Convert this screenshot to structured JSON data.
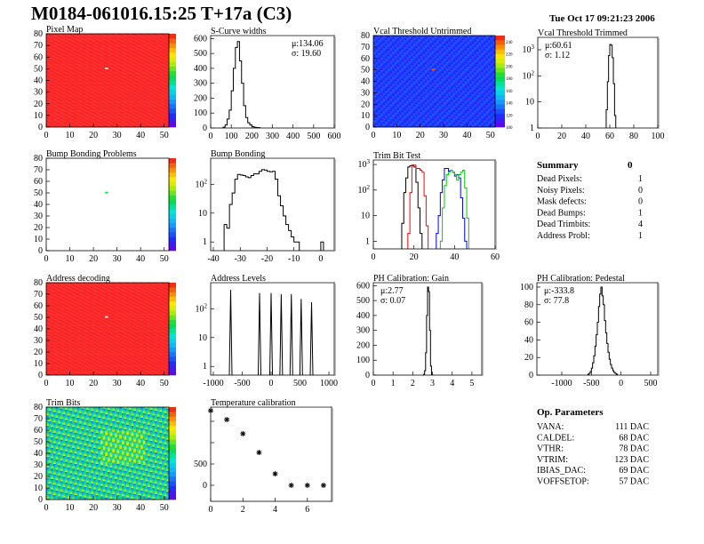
{
  "header": {
    "title": "M0184-061016.15:25 T+17a (C3)",
    "date": "Tue Oct 17 09:21:23 2006"
  },
  "summary": {
    "title": "Summary",
    "value": "0",
    "rows": [
      {
        "label": "Dead Pixels:",
        "value": "1"
      },
      {
        "label": "Noisy Pixels:",
        "value": "0"
      },
      {
        "label": "Mask defects:",
        "value": "0"
      },
      {
        "label": "Dead Bumps:",
        "value": "1"
      },
      {
        "label": "Dead Trimbits:",
        "value": "4"
      },
      {
        "label": "Address Probl:",
        "value": "1"
      }
    ]
  },
  "op_parameters": {
    "title": "Op. Parameters",
    "rows": [
      {
        "label": "VANA:",
        "value": "111 DAC"
      },
      {
        "label": "CALDEL:",
        "value": "68 DAC"
      },
      {
        "label": "VTHR:",
        "value": "78 DAC"
      },
      {
        "label": "VTRIM:",
        "value": "123 DAC"
      },
      {
        "label": "IBIAS_DAC:",
        "value": "69 DAC"
      },
      {
        "label": "VOFFSETOP:",
        "value": "57 DAC"
      }
    ]
  },
  "chart_data": [
    {
      "id": "pixel_map",
      "type": "heatmap",
      "title": "Pixel Map",
      "xlim": [
        0,
        52
      ],
      "ylim": [
        0,
        80
      ],
      "xticks": [
        0,
        10,
        20,
        30,
        40,
        50
      ],
      "yticks": [
        0,
        10,
        20,
        30,
        40,
        50,
        60,
        70,
        80
      ],
      "zlim": [
        0,
        10
      ],
      "base_value": 10,
      "special_pixels": [
        {
          "x": 25,
          "y": 50,
          "value": 0
        }
      ]
    },
    {
      "id": "scurve",
      "type": "bar",
      "title": "S-Curve widths",
      "xlim": [
        0,
        600
      ],
      "ylim": [
        0,
        620
      ],
      "xticks": [
        0,
        100,
        200,
        300,
        400,
        500,
        600
      ],
      "yticks": [
        0,
        100,
        200,
        300,
        400,
        500,
        600
      ],
      "stats": [
        "μ:134.06",
        "σ: 19.60"
      ],
      "bin_width": 10,
      "series": [
        {
          "color": "#000000",
          "x": [
            60,
            70,
            80,
            90,
            100,
            110,
            120,
            130,
            140,
            150,
            160,
            170,
            180,
            190,
            200,
            210,
            220,
            230
          ],
          "values": [
            5,
            20,
            60,
            120,
            250,
            400,
            540,
            580,
            450,
            300,
            150,
            70,
            35,
            20,
            10,
            5,
            3,
            2
          ]
        }
      ]
    },
    {
      "id": "vcal_untrimmed",
      "type": "heatmap",
      "title": "Vcal Threshold Untrimmed",
      "xlim": [
        0,
        52
      ],
      "ylim": [
        0,
        80
      ],
      "xticks": [
        0,
        10,
        20,
        30,
        40,
        50
      ],
      "yticks": [
        0,
        10,
        20,
        30,
        40,
        50,
        60,
        70,
        80
      ],
      "zlim": [
        100,
        250
      ],
      "zticks": [
        100,
        120,
        140,
        160,
        180,
        200,
        220,
        240
      ],
      "base_value": 122,
      "special_pixels": [
        {
          "x": 25,
          "y": 50,
          "value": 240
        }
      ]
    },
    {
      "id": "vcal_trimmed",
      "type": "bar",
      "title": "Vcal Threshold Trimmed",
      "log": true,
      "xlim": [
        0,
        100
      ],
      "ylim": [
        1,
        3000
      ],
      "xticks": [
        0,
        20,
        40,
        60,
        80,
        100
      ],
      "yticks": [
        1,
        10,
        100,
        1000
      ],
      "stats": [
        "μ:60.61",
        "σ: 1.12"
      ],
      "bin_width": 1,
      "series": [
        {
          "color": "#000000",
          "x": [
            57,
            58,
            59,
            60,
            61,
            62,
            63,
            64
          ],
          "values": [
            5,
            60,
            600,
            1600,
            1500,
            500,
            50,
            3
          ]
        }
      ]
    },
    {
      "id": "bump_problems",
      "type": "heatmap",
      "title": "Bump Bonding Problems",
      "xlim": [
        0,
        52
      ],
      "ylim": [
        0,
        80
      ],
      "xticks": [
        0,
        10,
        20,
        30,
        40,
        50
      ],
      "yticks": [
        0,
        10,
        20,
        30,
        40,
        50,
        60,
        70,
        80
      ],
      "zlim": [
        -2,
        0
      ],
      "base_value": null,
      "special_pixels": [
        {
          "x": 25,
          "y": 50,
          "value": -0.9
        }
      ]
    },
    {
      "id": "bump_bonding",
      "type": "bar",
      "title": "Bump Bonding",
      "log": true,
      "xlim": [
        -41,
        5
      ],
      "ylim": [
        0.5,
        800
      ],
      "xticks": [
        -40,
        -30,
        -20,
        -10,
        0
      ],
      "yticks": [
        1,
        10,
        100
      ],
      "bin_width": 1,
      "series": [
        {
          "color": "#000000",
          "x": [
            -36,
            -35,
            -34,
            -33,
            -32,
            -31,
            -30,
            -29,
            -28,
            -27,
            -26,
            -25,
            -24,
            -23,
            -22,
            -21,
            -20,
            -19,
            -18,
            -17,
            -16,
            -15,
            -14,
            -13,
            -12,
            -11,
            -10,
            -9,
            0
          ],
          "values": [
            4,
            3,
            20,
            50,
            150,
            220,
            210,
            200,
            180,
            170,
            200,
            230,
            230,
            280,
            320,
            310,
            280,
            270,
            280,
            150,
            40,
            18,
            8,
            4,
            2.5,
            1.5,
            1,
            1,
            1
          ]
        }
      ]
    },
    {
      "id": "trim_bit_test",
      "type": "bar",
      "title": "Trim Bit Test",
      "log": true,
      "xlim": [
        0,
        60
      ],
      "ylim": [
        0.5,
        1500
      ],
      "xticks": [
        0,
        20,
        40,
        60
      ],
      "yticks": [
        1,
        10,
        100,
        1000
      ],
      "bin_width": 1,
      "series": [
        {
          "color": "#000000",
          "x": [
            14,
            15,
            16,
            17,
            18,
            19,
            20,
            21,
            22,
            23
          ],
          "values": [
            5,
            80,
            300,
            800,
            900,
            950,
            800,
            200,
            20,
            2
          ]
        },
        {
          "color": "#ff0000",
          "x": [
            17,
            18,
            19,
            20,
            21,
            22,
            23,
            24,
            25,
            26
          ],
          "values": [
            2,
            80,
            900,
            950,
            700,
            700,
            600,
            500,
            60,
            4
          ]
        },
        {
          "color": "#0000ff",
          "x": [
            31,
            32,
            33,
            34,
            35,
            36,
            37,
            38,
            39,
            40,
            41,
            42,
            43,
            44,
            45
          ],
          "values": [
            2,
            10,
            80,
            250,
            700,
            700,
            550,
            600,
            500,
            350,
            400,
            300,
            50,
            8,
            1
          ]
        },
        {
          "color": "#00cc00",
          "x": [
            33,
            34,
            35,
            36,
            37,
            38,
            39,
            40,
            41,
            42,
            43,
            44,
            45,
            46
          ],
          "values": [
            1,
            20,
            150,
            400,
            500,
            600,
            500,
            400,
            250,
            400,
            500,
            600,
            120,
            8
          ]
        }
      ]
    },
    {
      "id": "address_decoding",
      "type": "heatmap",
      "title": "Address decoding",
      "xlim": [
        0,
        52
      ],
      "ylim": [
        0,
        80
      ],
      "xticks": [
        0,
        10,
        20,
        30,
        40,
        50
      ],
      "yticks": [
        0,
        10,
        20,
        30,
        40,
        50,
        60,
        70,
        80
      ],
      "zlim": [
        0,
        1
      ],
      "base_value": 1,
      "special_pixels": [
        {
          "x": 25,
          "y": 50,
          "value": 0
        }
      ]
    },
    {
      "id": "address_levels",
      "type": "spikes",
      "title": "Address Levels",
      "log": true,
      "xlim": [
        -1046,
        1092
      ],
      "ylim": [
        0.5,
        800
      ],
      "xticks": [
        -1000,
        -500,
        0,
        500,
        1000
      ],
      "yticks": [
        1,
        10,
        100
      ],
      "series": [
        {
          "color": "#000000",
          "x": [
            -700,
            -200,
            0,
            175,
            350,
            520,
            700
          ],
          "values": [
            450,
            350,
            350,
            320,
            320,
            220,
            170
          ]
        }
      ]
    },
    {
      "id": "ph_gain",
      "type": "bar",
      "title": "PH Calibration: Gain",
      "xlim": [
        0,
        5.5
      ],
      "ylim": [
        0,
        620
      ],
      "xticks": [
        0,
        1,
        2,
        3,
        4,
        5
      ],
      "yticks": [
        0,
        100,
        200,
        300,
        400,
        500,
        600
      ],
      "stats": [
        "μ:2.77",
        "σ: 0.07"
      ],
      "bin_width": 0.05,
      "series": [
        {
          "color": "#000000",
          "x": [
            2.55,
            2.6,
            2.65,
            2.7,
            2.75,
            2.8,
            2.85,
            2.9,
            2.95
          ],
          "values": [
            5,
            30,
            150,
            400,
            590,
            560,
            300,
            60,
            5
          ]
        }
      ]
    },
    {
      "id": "ph_pedestal",
      "type": "bar",
      "title": "PH Calibration: Pedestal",
      "xlim": [
        -1420,
        620
      ],
      "ylim": [
        0,
        105
      ],
      "xticks": [
        -1000,
        -500,
        0,
        500
      ],
      "yticks": [
        0,
        20,
        40,
        60,
        80,
        100
      ],
      "stats": [
        "μ:-333.8",
        "σ: 77.8"
      ],
      "bin_width": 20,
      "series": [
        {
          "color": "#000000",
          "x": [
            -560,
            -540,
            -520,
            -500,
            -480,
            -460,
            -440,
            -420,
            -400,
            -380,
            -360,
            -340,
            -320,
            -300,
            -280,
            -260,
            -240,
            -220,
            -200,
            -180,
            -160,
            -140,
            -120,
            -100,
            -80
          ],
          "values": [
            1,
            2,
            4,
            8,
            14,
            22,
            33,
            46,
            60,
            78,
            92,
            100,
            90,
            80,
            62,
            48,
            36,
            26,
            18,
            12,
            8,
            5,
            3,
            2,
            1
          ]
        }
      ]
    },
    {
      "id": "trim_bits",
      "type": "heatmap",
      "title": "Trim Bits",
      "xlim": [
        0,
        52
      ],
      "ylim": [
        0,
        80
      ],
      "xticks": [
        0,
        10,
        20,
        30,
        40,
        50
      ],
      "yticks": [
        0,
        10,
        20,
        30,
        40,
        50,
        60,
        70,
        80
      ],
      "zlim": [
        0,
        15
      ],
      "base_value": 7,
      "special_pixels": []
    },
    {
      "id": "temperature",
      "type": "scatter",
      "title": "Temperature calibration",
      "xlim": [
        0,
        7.5
      ],
      "ylim": [
        -375,
        1833
      ],
      "xticks": [
        0,
        2,
        4,
        6
      ],
      "yticks": [
        0,
        500
      ],
      "yminor": [
        1000,
        1500
      ],
      "series": [
        {
          "color": "#000000",
          "x": [
            0,
            1,
            2,
            3,
            4,
            5,
            6,
            7
          ],
          "values": [
            1750,
            1540,
            1210,
            770,
            270,
            0,
            0,
            0
          ]
        }
      ]
    }
  ]
}
